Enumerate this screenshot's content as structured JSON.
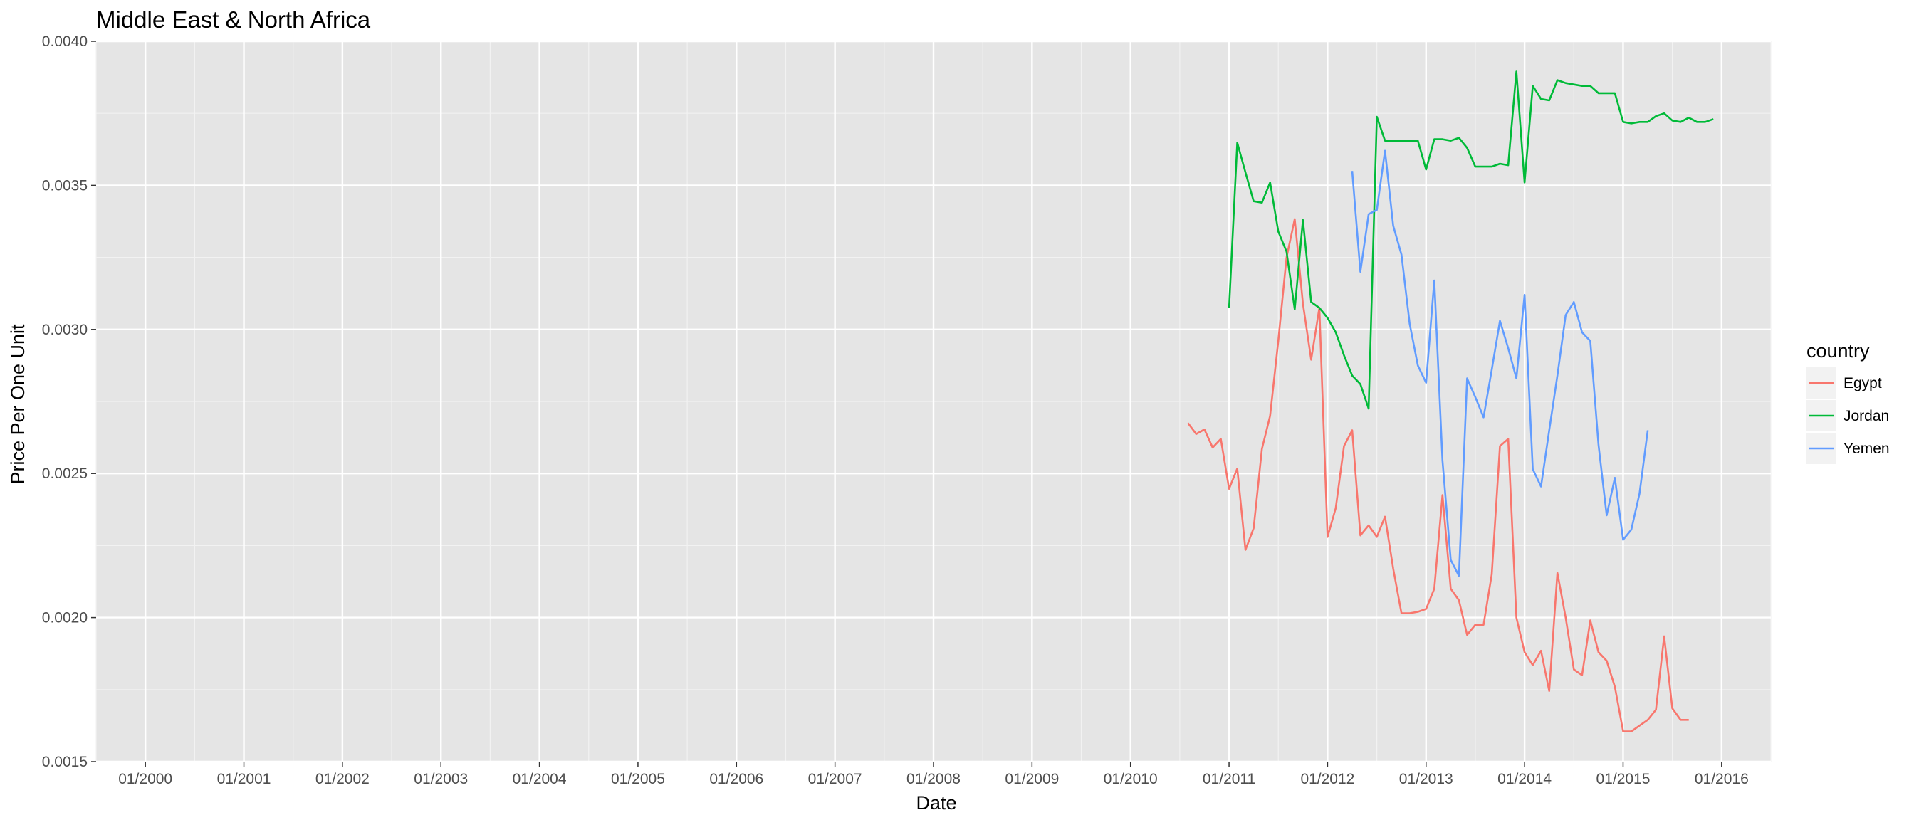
{
  "chart_data": {
    "type": "line",
    "title": "Middle East & North Africa",
    "xlabel": "Date",
    "ylabel": "Price Per One Unit",
    "x_type": "date",
    "xlim": [
      "1999-07-01",
      "2016-07-01"
    ],
    "ylim": [
      0.0015,
      0.004
    ],
    "x_ticks": [
      "2000-01",
      "2001-01",
      "2002-01",
      "2003-01",
      "2004-01",
      "2005-01",
      "2006-01",
      "2007-01",
      "2008-01",
      "2009-01",
      "2010-01",
      "2011-01",
      "2012-01",
      "2013-01",
      "2014-01",
      "2015-01",
      "2016-01"
    ],
    "x_tick_labels": [
      "01/2000",
      "01/2001",
      "01/2002",
      "01/2003",
      "01/2004",
      "01/2005",
      "01/2006",
      "01/2007",
      "01/2008",
      "01/2009",
      "01/2010",
      "01/2011",
      "01/2012",
      "01/2013",
      "01/2014",
      "01/2015",
      "01/2016"
    ],
    "y_ticks": [
      0.0015,
      0.002,
      0.0025,
      0.003,
      0.0035,
      0.004
    ],
    "y_tick_labels": [
      "0.0015",
      "0.0020",
      "0.0025",
      "0.0030",
      "0.0035",
      "0.0040"
    ],
    "grid": true,
    "background": "#e5e5e5",
    "legend": {
      "title": "country",
      "position": "right"
    },
    "series": [
      {
        "name": "Egypt",
        "color": "#f8766d",
        "points": [
          [
            "2010-08",
            0.002675
          ],
          [
            "2010-09",
            0.002637
          ],
          [
            "2010-10",
            0.002653
          ],
          [
            "2010-11",
            0.00259
          ],
          [
            "2010-12",
            0.00262
          ],
          [
            "2011-01",
            0.002447
          ],
          [
            "2011-02",
            0.002517
          ],
          [
            "2011-03",
            0.002235
          ],
          [
            "2011-04",
            0.00231
          ],
          [
            "2011-05",
            0.002585
          ],
          [
            "2011-06",
            0.0027
          ],
          [
            "2011-07",
            0.00296
          ],
          [
            "2011-08",
            0.00325
          ],
          [
            "2011-09",
            0.003383
          ],
          [
            "2011-10",
            0.00309
          ],
          [
            "2011-11",
            0.002895
          ],
          [
            "2011-12",
            0.003075
          ],
          [
            "2012-01",
            0.00228
          ],
          [
            "2012-02",
            0.00238
          ],
          [
            "2012-03",
            0.002595
          ],
          [
            "2012-04",
            0.00265
          ],
          [
            "2012-05",
            0.002285
          ],
          [
            "2012-06",
            0.00232
          ],
          [
            "2012-07",
            0.00228
          ],
          [
            "2012-08",
            0.00235
          ],
          [
            "2012-09",
            0.00217
          ],
          [
            "2012-10",
            0.002015
          ],
          [
            "2012-11",
            0.002015
          ],
          [
            "2012-12",
            0.00202
          ],
          [
            "2013-01",
            0.00203
          ],
          [
            "2013-02",
            0.0021
          ],
          [
            "2013-03",
            0.002425
          ],
          [
            "2013-04",
            0.0021
          ],
          [
            "2013-05",
            0.00206
          ],
          [
            "2013-06",
            0.00194
          ],
          [
            "2013-07",
            0.001975
          ],
          [
            "2013-08",
            0.001975
          ],
          [
            "2013-09",
            0.00215
          ],
          [
            "2013-10",
            0.002595
          ],
          [
            "2013-11",
            0.00262
          ],
          [
            "2013-12",
            0.002
          ],
          [
            "2014-01",
            0.00188
          ],
          [
            "2014-02",
            0.001835
          ],
          [
            "2014-03",
            0.001885
          ],
          [
            "2014-04",
            0.001745
          ],
          [
            "2014-05",
            0.002155
          ],
          [
            "2014-06",
            0.002
          ],
          [
            "2014-07",
            0.00182
          ],
          [
            "2014-08",
            0.0018
          ],
          [
            "2014-09",
            0.00199
          ],
          [
            "2014-10",
            0.00188
          ],
          [
            "2014-11",
            0.00185
          ],
          [
            "2014-12",
            0.00176
          ],
          [
            "2015-01",
            0.001605
          ],
          [
            "2015-02",
            0.001605
          ],
          [
            "2015-03",
            0.001625
          ],
          [
            "2015-04",
            0.001645
          ],
          [
            "2015-05",
            0.00168
          ],
          [
            "2015-06",
            0.001935
          ],
          [
            "2015-07",
            0.001685
          ],
          [
            "2015-08",
            0.001645
          ],
          [
            "2015-09",
            0.001645
          ]
        ]
      },
      {
        "name": "Jordan",
        "color": "#00ba38",
        "points": [
          [
            "2011-01",
            0.003075
          ],
          [
            "2011-02",
            0.003648
          ],
          [
            "2011-03",
            0.003545
          ],
          [
            "2011-04",
            0.003445
          ],
          [
            "2011-05",
            0.00344
          ],
          [
            "2011-06",
            0.00351
          ],
          [
            "2011-07",
            0.00334
          ],
          [
            "2011-08",
            0.00327
          ],
          [
            "2011-09",
            0.00307
          ],
          [
            "2011-10",
            0.00338
          ],
          [
            "2011-11",
            0.003095
          ],
          [
            "2011-12",
            0.003075
          ],
          [
            "2012-01",
            0.00304
          ],
          [
            "2012-02",
            0.00299
          ],
          [
            "2012-03",
            0.00291
          ],
          [
            "2012-04",
            0.00284
          ],
          [
            "2012-05",
            0.00281
          ],
          [
            "2012-06",
            0.002725
          ],
          [
            "2012-07",
            0.003738
          ],
          [
            "2012-08",
            0.003655
          ],
          [
            "2012-09",
            0.003655
          ],
          [
            "2012-10",
            0.003655
          ],
          [
            "2012-11",
            0.003655
          ],
          [
            "2012-12",
            0.003655
          ],
          [
            "2013-01",
            0.003555
          ],
          [
            "2013-02",
            0.00366
          ],
          [
            "2013-03",
            0.00366
          ],
          [
            "2013-04",
            0.003655
          ],
          [
            "2013-05",
            0.003665
          ],
          [
            "2013-06",
            0.00363
          ],
          [
            "2013-07",
            0.003565
          ],
          [
            "2013-08",
            0.003565
          ],
          [
            "2013-09",
            0.003565
          ],
          [
            "2013-10",
            0.003575
          ],
          [
            "2013-11",
            0.00357
          ],
          [
            "2013-12",
            0.003895
          ],
          [
            "2014-01",
            0.00351
          ],
          [
            "2014-02",
            0.003845
          ],
          [
            "2014-03",
            0.0038
          ],
          [
            "2014-04",
            0.003795
          ],
          [
            "2014-05",
            0.003865
          ],
          [
            "2014-06",
            0.003855
          ],
          [
            "2014-07",
            0.00385
          ],
          [
            "2014-08",
            0.003845
          ],
          [
            "2014-09",
            0.003845
          ],
          [
            "2014-10",
            0.00382
          ],
          [
            "2014-11",
            0.00382
          ],
          [
            "2014-12",
            0.00382
          ],
          [
            "2015-01",
            0.00372
          ],
          [
            "2015-02",
            0.003715
          ],
          [
            "2015-03",
            0.00372
          ],
          [
            "2015-04",
            0.00372
          ],
          [
            "2015-05",
            0.00374
          ],
          [
            "2015-06",
            0.00375
          ],
          [
            "2015-07",
            0.003725
          ],
          [
            "2015-08",
            0.00372
          ],
          [
            "2015-09",
            0.003735
          ],
          [
            "2015-10",
            0.00372
          ],
          [
            "2015-11",
            0.00372
          ],
          [
            "2015-12",
            0.00373
          ]
        ]
      },
      {
        "name": "Yemen",
        "color": "#619cff",
        "points": [
          [
            "2012-04",
            0.00355
          ],
          [
            "2012-05",
            0.0032
          ],
          [
            "2012-06",
            0.0034
          ],
          [
            "2012-07",
            0.003415
          ],
          [
            "2012-08",
            0.00362
          ],
          [
            "2012-09",
            0.00336
          ],
          [
            "2012-10",
            0.00326
          ],
          [
            "2012-11",
            0.00302
          ],
          [
            "2012-12",
            0.002875
          ],
          [
            "2013-01",
            0.002815
          ],
          [
            "2013-02",
            0.00317
          ],
          [
            "2013-03",
            0.002545
          ],
          [
            "2013-04",
            0.0022
          ],
          [
            "2013-05",
            0.002145
          ],
          [
            "2013-06",
            0.00283
          ],
          [
            "2013-07",
            0.002765
          ],
          [
            "2013-08",
            0.002695
          ],
          [
            "2013-09",
            0.00286
          ],
          [
            "2013-10",
            0.00303
          ],
          [
            "2013-11",
            0.002935
          ],
          [
            "2013-12",
            0.00283
          ],
          [
            "2014-01",
            0.00312
          ],
          [
            "2014-02",
            0.002515
          ],
          [
            "2014-03",
            0.002455
          ],
          [
            "2014-04",
            0.00265
          ],
          [
            "2014-05",
            0.00284
          ],
          [
            "2014-06",
            0.00305
          ],
          [
            "2014-07",
            0.003095
          ],
          [
            "2014-08",
            0.00299
          ],
          [
            "2014-09",
            0.00296
          ],
          [
            "2014-10",
            0.0026
          ],
          [
            "2014-11",
            0.002355
          ],
          [
            "2014-12",
            0.002485
          ],
          [
            "2015-01",
            0.00227
          ],
          [
            "2015-02",
            0.002305
          ],
          [
            "2015-03",
            0.00243
          ],
          [
            "2015-04",
            0.00265
          ]
        ]
      }
    ]
  }
}
